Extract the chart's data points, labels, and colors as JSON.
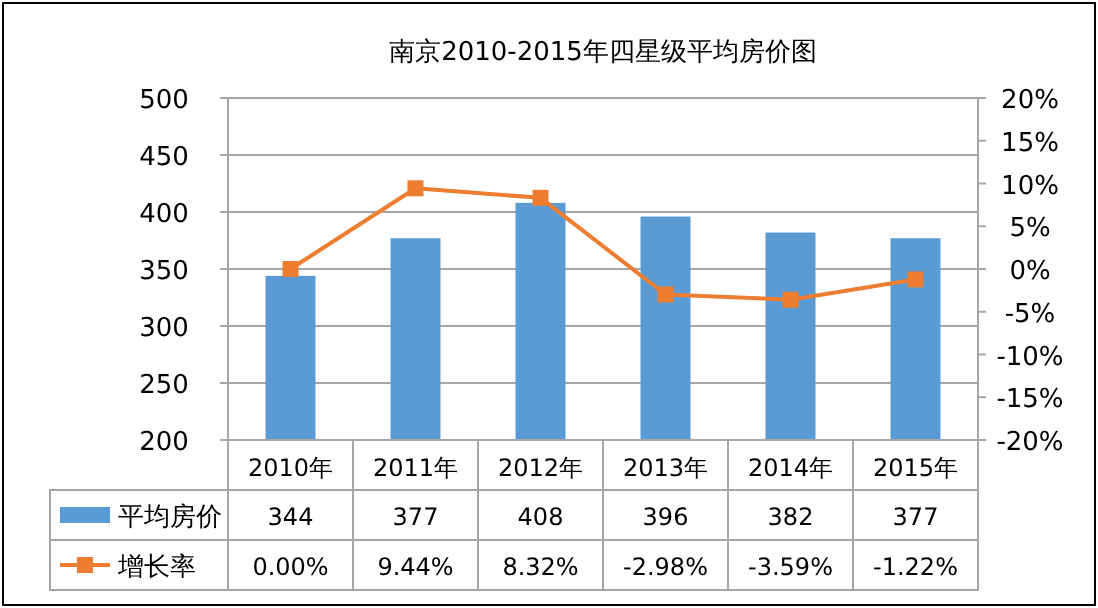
{
  "chart_data": {
    "type": "bar",
    "title": "南京2010-2015年四星级平均房价图",
    "categories": [
      "2010年",
      "2011年",
      "2012年",
      "2013年",
      "2014年",
      "2015年"
    ],
    "series": [
      {
        "name": "平均房价",
        "color": "#5b9bd5",
        "values": [
          344,
          377,
          408,
          396,
          382,
          377
        ],
        "value_labels": [
          "344",
          "377",
          "408",
          "396",
          "382",
          "377"
        ]
      },
      {
        "name": "增长率",
        "type": "line",
        "axis": "y2",
        "color": "#ed7d31",
        "values": [
          0.0,
          9.44,
          8.32,
          -2.98,
          -3.59,
          -1.22
        ],
        "value_labels": [
          "0.00%",
          "9.44%",
          "8.32%",
          "-2.98%",
          "-3.59%",
          "-1.22%"
        ]
      }
    ],
    "ylim": [
      200,
      500
    ],
    "yticks": [
      200,
      250,
      300,
      350,
      400,
      450,
      500
    ],
    "y2lim": [
      -20,
      20
    ],
    "y2ticks": [
      {
        "value": -20,
        "label": "-20%"
      },
      {
        "value": -15,
        "label": "-15%"
      },
      {
        "value": -10,
        "label": "-10%"
      },
      {
        "value": -5,
        "label": "-5%"
      },
      {
        "value": 0,
        "label": "0%"
      },
      {
        "value": 5,
        "label": "5%"
      },
      {
        "value": 10,
        "label": "10%"
      },
      {
        "value": 15,
        "label": "15%"
      },
      {
        "value": 20,
        "label": "20%"
      }
    ],
    "grid": "y",
    "legend": "bottom",
    "marker": "square"
  }
}
